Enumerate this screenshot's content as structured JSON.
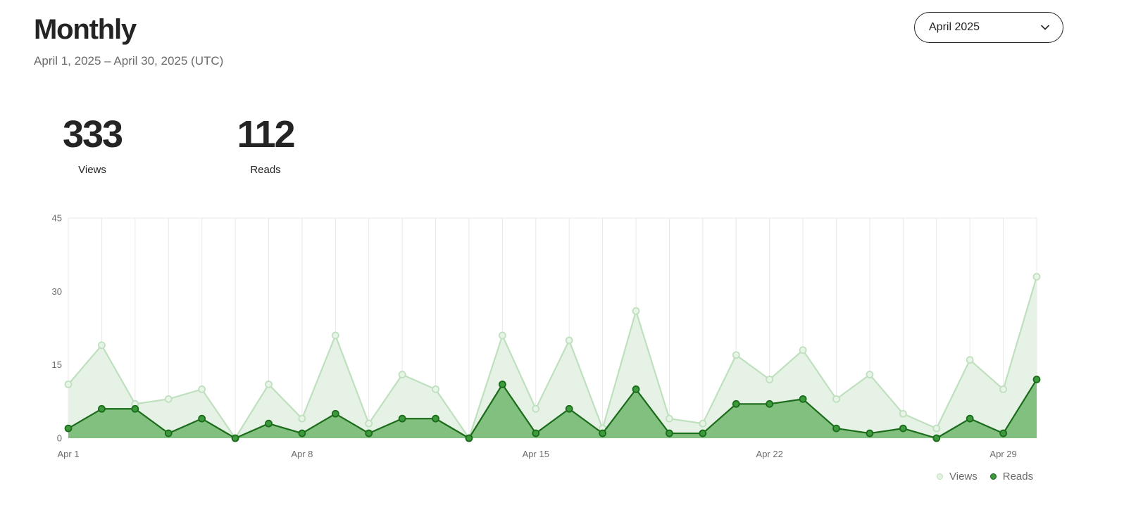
{
  "header": {
    "title": "Monthly",
    "date_range": "April 1, 2025 – April 30, 2025 (UTC)",
    "month_select": {
      "value": "April 2025",
      "icon": "chevron-down-icon"
    }
  },
  "stats": {
    "views": {
      "value": "333",
      "label": "Views"
    },
    "reads": {
      "value": "112",
      "label": "Reads"
    }
  },
  "legend": {
    "views_label": "Views",
    "reads_label": "Reads"
  },
  "colors": {
    "views_fill": "#e6f2e5",
    "views_line": "#bfe0be",
    "reads_fill": "#82c07f",
    "reads_line": "#1a6b1a",
    "grid": "#e8e8e8"
  },
  "chart_data": {
    "type": "area",
    "x": [
      "Apr 1",
      "Apr 2",
      "Apr 3",
      "Apr 4",
      "Apr 5",
      "Apr 6",
      "Apr 7",
      "Apr 8",
      "Apr 9",
      "Apr 10",
      "Apr 11",
      "Apr 12",
      "Apr 13",
      "Apr 14",
      "Apr 15",
      "Apr 16",
      "Apr 17",
      "Apr 18",
      "Apr 19",
      "Apr 20",
      "Apr 21",
      "Apr 22",
      "Apr 23",
      "Apr 24",
      "Apr 25",
      "Apr 26",
      "Apr 27",
      "Apr 28",
      "Apr 29",
      "Apr 30"
    ],
    "x_tick_labels": [
      "Apr 1",
      "Apr 8",
      "Apr 15",
      "Apr 22",
      "Apr 29"
    ],
    "series": [
      {
        "name": "Views",
        "values": [
          11,
          19,
          7,
          8,
          10,
          0,
          11,
          4,
          21,
          3,
          13,
          10,
          0,
          21,
          6,
          20,
          2,
          26,
          4,
          3,
          17,
          12,
          18,
          8,
          13,
          5,
          2,
          16,
          10,
          33
        ]
      },
      {
        "name": "Reads",
        "values": [
          2,
          6,
          6,
          1,
          4,
          0,
          3,
          1,
          5,
          1,
          4,
          4,
          0,
          11,
          1,
          6,
          1,
          10,
          1,
          1,
          7,
          7,
          8,
          2,
          1,
          2,
          0,
          4,
          1,
          12
        ]
      }
    ],
    "ylim": [
      0,
      45
    ],
    "yticks": [
      0,
      15,
      30,
      45
    ],
    "grid": "vertical per day",
    "legend_position": "bottom-right"
  }
}
